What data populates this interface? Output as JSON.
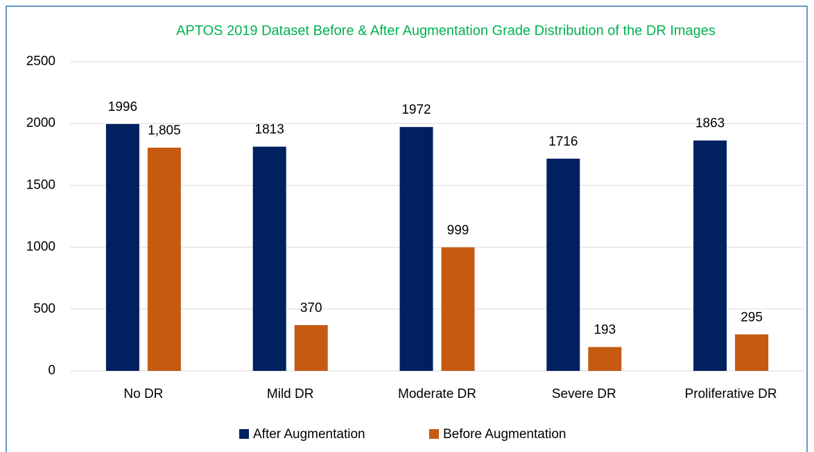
{
  "chart_data": {
    "type": "bar",
    "title": "APTOS 2019 Dataset Before & After Augmentation Grade Distribution of the DR Images",
    "categories": [
      "No DR",
      "Mild DR",
      "Moderate DR",
      "Severe DR",
      "Proliferative DR"
    ],
    "series": [
      {
        "name": "After Augmentation",
        "color": "#002060",
        "values": [
          1996,
          1813,
          1972,
          1716,
          1863
        ]
      },
      {
        "name": "Before Augmentation",
        "color": "#c55a11",
        "values": [
          1805,
          370,
          999,
          193,
          295
        ],
        "value_labels": [
          "1,805",
          "370",
          "999",
          "193",
          "295"
        ]
      }
    ],
    "ylim": [
      0,
      2500
    ],
    "yticks": [
      0,
      500,
      1000,
      1500,
      2000,
      2500
    ],
    "grid": true,
    "legend": "bottom"
  }
}
